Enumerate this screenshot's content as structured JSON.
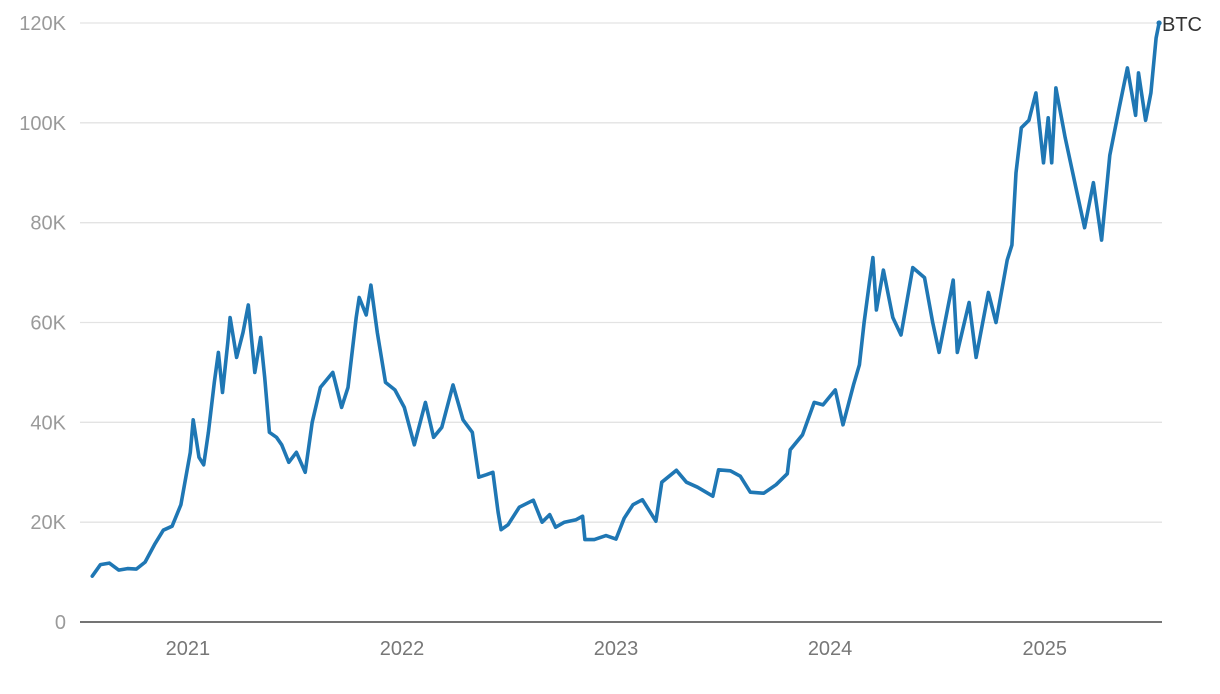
{
  "colors": {
    "series": "#1f77b4"
  },
  "chart_data": {
    "type": "line",
    "title": "",
    "xlabel": "",
    "ylabel": "",
    "ylim": [
      0,
      120000
    ],
    "xlim": [
      "2020-07-01",
      "2025-07-20"
    ],
    "grid": "horizontal",
    "y_ticks": [
      {
        "value": 0,
        "label": "0"
      },
      {
        "value": 20000,
        "label": "20K"
      },
      {
        "value": 40000,
        "label": "40K"
      },
      {
        "value": 60000,
        "label": "60K"
      },
      {
        "value": 80000,
        "label": "80K"
      },
      {
        "value": 100000,
        "label": "100K"
      },
      {
        "value": 120000,
        "label": "120K"
      }
    ],
    "x_ticks": [
      {
        "value": "2021-01-01",
        "label": "2021"
      },
      {
        "value": "2022-01-01",
        "label": "2022"
      },
      {
        "value": "2023-01-01",
        "label": "2023"
      },
      {
        "value": "2024-01-01",
        "label": "2024"
      },
      {
        "value": "2025-01-01",
        "label": "2025"
      }
    ],
    "series": [
      {
        "name": "BTC",
        "points": [
          [
            "2020-07-22",
            9200
          ],
          [
            "2020-08-05",
            11500
          ],
          [
            "2020-08-20",
            11800
          ],
          [
            "2020-09-05",
            10400
          ],
          [
            "2020-09-20",
            10700
          ],
          [
            "2020-10-05",
            10600
          ],
          [
            "2020-10-20",
            12000
          ],
          [
            "2020-11-05",
            15500
          ],
          [
            "2020-11-20",
            18400
          ],
          [
            "2020-12-05",
            19200
          ],
          [
            "2020-12-20",
            23500
          ],
          [
            "2021-01-05",
            34000
          ],
          [
            "2021-01-10",
            40500
          ],
          [
            "2021-01-20",
            33000
          ],
          [
            "2021-01-28",
            31500
          ],
          [
            "2021-02-05",
            38000
          ],
          [
            "2021-02-15",
            48000
          ],
          [
            "2021-02-22",
            54000
          ],
          [
            "2021-03-01",
            46000
          ],
          [
            "2021-03-10",
            56000
          ],
          [
            "2021-03-14",
            61000
          ],
          [
            "2021-03-25",
            53000
          ],
          [
            "2021-04-05",
            58000
          ],
          [
            "2021-04-14",
            63500
          ],
          [
            "2021-04-25",
            50000
          ],
          [
            "2021-05-05",
            57000
          ],
          [
            "2021-05-12",
            49000
          ],
          [
            "2021-05-20",
            38000
          ],
          [
            "2021-06-01",
            37000
          ],
          [
            "2021-06-10",
            35500
          ],
          [
            "2021-06-22",
            32000
          ],
          [
            "2021-07-05",
            34000
          ],
          [
            "2021-07-20",
            30000
          ],
          [
            "2021-08-01",
            40000
          ],
          [
            "2021-08-15",
            47000
          ],
          [
            "2021-09-05",
            50000
          ],
          [
            "2021-09-20",
            43000
          ],
          [
            "2021-10-01",
            47000
          ],
          [
            "2021-10-15",
            61000
          ],
          [
            "2021-10-20",
            65000
          ],
          [
            "2021-11-01",
            61500
          ],
          [
            "2021-11-09",
            67500
          ],
          [
            "2021-11-20",
            58000
          ],
          [
            "2021-12-04",
            48000
          ],
          [
            "2021-12-20",
            46500
          ],
          [
            "2022-01-05",
            43000
          ],
          [
            "2022-01-22",
            35500
          ],
          [
            "2022-02-10",
            44000
          ],
          [
            "2022-02-24",
            37000
          ],
          [
            "2022-03-10",
            39000
          ],
          [
            "2022-03-29",
            47500
          ],
          [
            "2022-04-15",
            40500
          ],
          [
            "2022-05-01",
            38000
          ],
          [
            "2022-05-12",
            29000
          ],
          [
            "2022-05-25",
            29500
          ],
          [
            "2022-06-05",
            30000
          ],
          [
            "2022-06-14",
            22000
          ],
          [
            "2022-06-19",
            18500
          ],
          [
            "2022-07-01",
            19500
          ],
          [
            "2022-07-20",
            23000
          ],
          [
            "2022-08-13",
            24400
          ],
          [
            "2022-08-28",
            20000
          ],
          [
            "2022-09-10",
            21500
          ],
          [
            "2022-09-20",
            19000
          ],
          [
            "2022-10-05",
            20000
          ],
          [
            "2022-10-25",
            20500
          ],
          [
            "2022-11-05",
            21200
          ],
          [
            "2022-11-09",
            16500
          ],
          [
            "2022-11-25",
            16500
          ],
          [
            "2022-12-15",
            17300
          ],
          [
            "2023-01-01",
            16600
          ],
          [
            "2023-01-15",
            20800
          ],
          [
            "2023-01-30",
            23500
          ],
          [
            "2023-02-15",
            24500
          ],
          [
            "2023-03-10",
            20200
          ],
          [
            "2023-03-20",
            28000
          ],
          [
            "2023-04-14",
            30400
          ],
          [
            "2023-05-01",
            28000
          ],
          [
            "2023-05-20",
            27000
          ],
          [
            "2023-06-15",
            25200
          ],
          [
            "2023-06-25",
            30500
          ],
          [
            "2023-07-15",
            30300
          ],
          [
            "2023-08-01",
            29200
          ],
          [
            "2023-08-18",
            26000
          ],
          [
            "2023-09-10",
            25800
          ],
          [
            "2023-10-01",
            27500
          ],
          [
            "2023-10-20",
            29700
          ],
          [
            "2023-10-25",
            34500
          ],
          [
            "2023-11-15",
            37500
          ],
          [
            "2023-12-05",
            44000
          ],
          [
            "2023-12-20",
            43500
          ],
          [
            "2024-01-10",
            46500
          ],
          [
            "2024-01-23",
            39500
          ],
          [
            "2024-02-10",
            47500
          ],
          [
            "2024-02-20",
            51500
          ],
          [
            "2024-02-28",
            60000
          ],
          [
            "2024-03-08",
            68000
          ],
          [
            "2024-03-14",
            73000
          ],
          [
            "2024-03-20",
            62500
          ],
          [
            "2024-04-01",
            70500
          ],
          [
            "2024-04-17",
            61000
          ],
          [
            "2024-05-01",
            57500
          ],
          [
            "2024-05-21",
            71000
          ],
          [
            "2024-06-10",
            69000
          ],
          [
            "2024-06-24",
            60000
          ],
          [
            "2024-07-05",
            54000
          ],
          [
            "2024-07-29",
            68500
          ],
          [
            "2024-08-05",
            54000
          ],
          [
            "2024-08-25",
            64000
          ],
          [
            "2024-09-06",
            53000
          ],
          [
            "2024-09-27",
            66000
          ],
          [
            "2024-10-10",
            60000
          ],
          [
            "2024-10-29",
            72500
          ],
          [
            "2024-11-06",
            75500
          ],
          [
            "2024-11-13",
            90000
          ],
          [
            "2024-11-22",
            99000
          ],
          [
            "2024-12-05",
            100500
          ],
          [
            "2024-12-17",
            106000
          ],
          [
            "2024-12-30",
            92000
          ],
          [
            "2025-01-07",
            101000
          ],
          [
            "2025-01-13",
            92000
          ],
          [
            "2025-01-20",
            107000
          ],
          [
            "2025-02-05",
            97000
          ],
          [
            "2025-02-25",
            86000
          ],
          [
            "2025-03-10",
            79000
          ],
          [
            "2025-03-25",
            88000
          ],
          [
            "2025-04-08",
            76500
          ],
          [
            "2025-04-22",
            93500
          ],
          [
            "2025-05-08",
            103000
          ],
          [
            "2025-05-22",
            111000
          ],
          [
            "2025-06-05",
            101500
          ],
          [
            "2025-06-10",
            110000
          ],
          [
            "2025-06-22",
            100500
          ],
          [
            "2025-07-01",
            106000
          ],
          [
            "2025-07-10",
            117000
          ],
          [
            "2025-07-15",
            120000
          ]
        ]
      }
    ]
  }
}
